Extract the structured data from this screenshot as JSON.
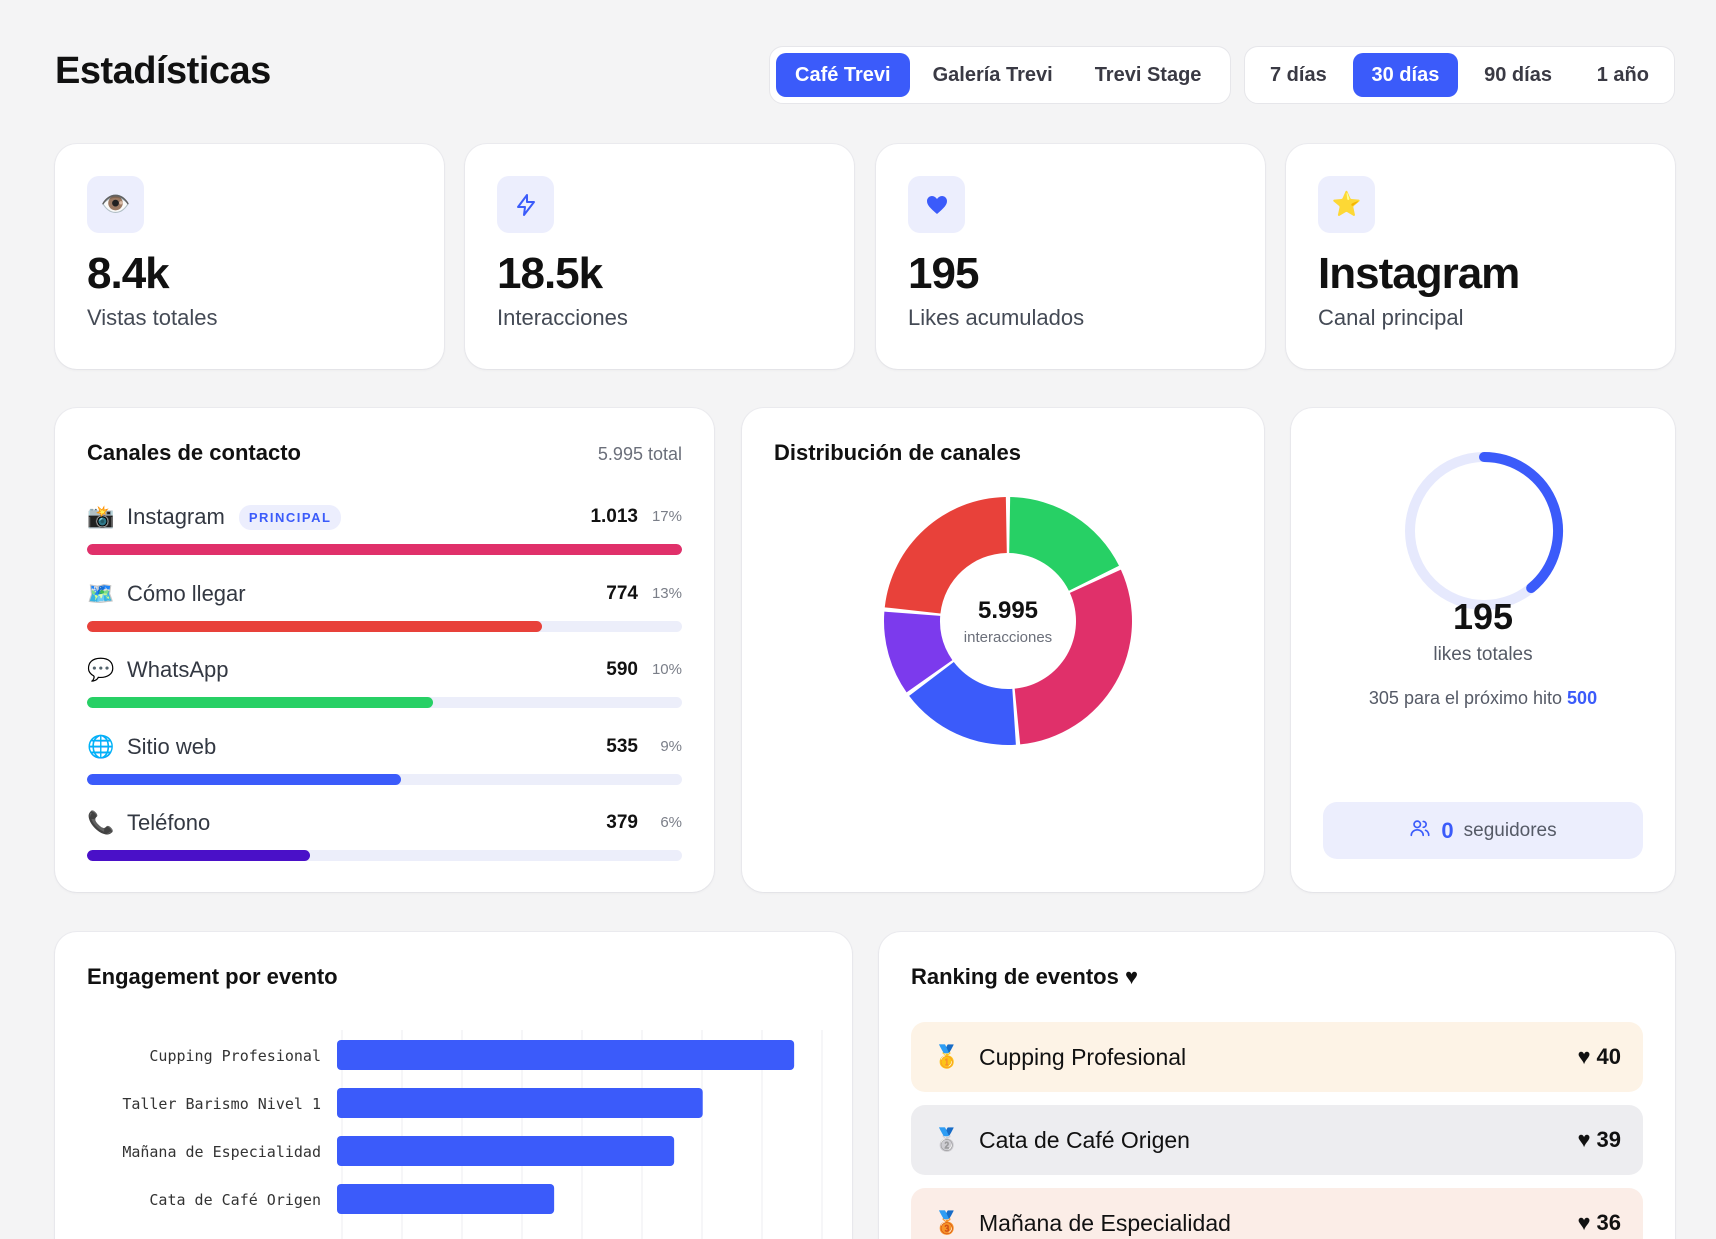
{
  "page": {
    "title": "Estadísticas"
  },
  "venues": {
    "options": [
      "Café Trevi",
      "Galería Trevi",
      "Trevi Stage"
    ],
    "selected": "Café Trevi"
  },
  "ranges": {
    "options": [
      "7 días",
      "30 días",
      "90 días",
      "1 año"
    ],
    "selected": "30 días"
  },
  "kpis": [
    {
      "icon": "eye-icon",
      "value": "8.4k",
      "label": "Vistas totales"
    },
    {
      "icon": "bolt-icon",
      "value": "18.5k",
      "label": "Interacciones"
    },
    {
      "icon": "heart-icon",
      "value": "195",
      "label": "Likes acumulados"
    },
    {
      "icon": "star-icon",
      "value": "Instagram",
      "label": "Canal principal"
    }
  ],
  "channels": {
    "title": "Canales de contacto",
    "total": "5.995 total",
    "items": [
      {
        "icon": "camera-icon",
        "name": "Instagram",
        "badge": "PRINCIPAL",
        "count": "1.013",
        "pct": "17%",
        "fraction": 1.0,
        "color": "#e0306a"
      },
      {
        "icon": "map-icon",
        "name": "Cómo llegar",
        "badge": "",
        "count": "774",
        "pct": "13%",
        "fraction": 0.764,
        "color": "#e8413a"
      },
      {
        "icon": "chat-bubble-icon",
        "name": "WhatsApp",
        "badge": "",
        "count": "590",
        "pct": "10%",
        "fraction": 0.582,
        "color": "#27d065"
      },
      {
        "icon": "globe-icon",
        "name": "Sitio web",
        "badge": "",
        "count": "535",
        "pct": "9%",
        "fraction": 0.528,
        "color": "#3b5bfa"
      },
      {
        "icon": "phone-icon",
        "name": "Teléfono",
        "badge": "",
        "count": "379",
        "pct": "6%",
        "fraction": 0.374,
        "color": "#4a10c8"
      }
    ]
  },
  "distribution": {
    "title": "Distribución de canales",
    "center_value": "5.995",
    "center_label": "interacciones",
    "chart_data": {
      "type": "pie",
      "labels": [
        "WhatsApp",
        "Instagram",
        "Sitio web",
        "Teléfono",
        "Cómo llegar"
      ],
      "values": [
        590,
        1013,
        535,
        379,
        774
      ],
      "colors": [
        "#27d065",
        "#e0306a",
        "#3b5bfa",
        "#7c3aed",
        "#e8413a"
      ]
    }
  },
  "likes": {
    "value": "195",
    "label": "likes totales",
    "next_text": "305 para el próximo hito",
    "milestone": "500",
    "progress": 0.39,
    "followers_count": "0",
    "followers_label": "seguidores"
  },
  "engagement": {
    "title": "Engagement por evento",
    "chart_data": {
      "type": "bar",
      "orientation": "horizontal",
      "categories": [
        "Cupping Profesional",
        "Taller Barismo Nivel 1",
        "Mañana de Especialidad",
        "Cata de Café Origen"
      ],
      "values": [
        40,
        32,
        29.5,
        19
      ],
      "xlim": [
        0,
        42
      ]
    }
  },
  "ranking": {
    "title": "Ranking de eventos",
    "title_icon": "heart-icon",
    "items": [
      {
        "medal": "gold-medal-icon",
        "name": "Cupping Profesional",
        "likes": "40"
      },
      {
        "medal": "silver-medal-icon",
        "name": "Cata de Café Origen",
        "likes": "39"
      },
      {
        "medal": "bronze-medal-icon",
        "name": "Mañana de Especialidad",
        "likes": "36"
      }
    ]
  }
}
